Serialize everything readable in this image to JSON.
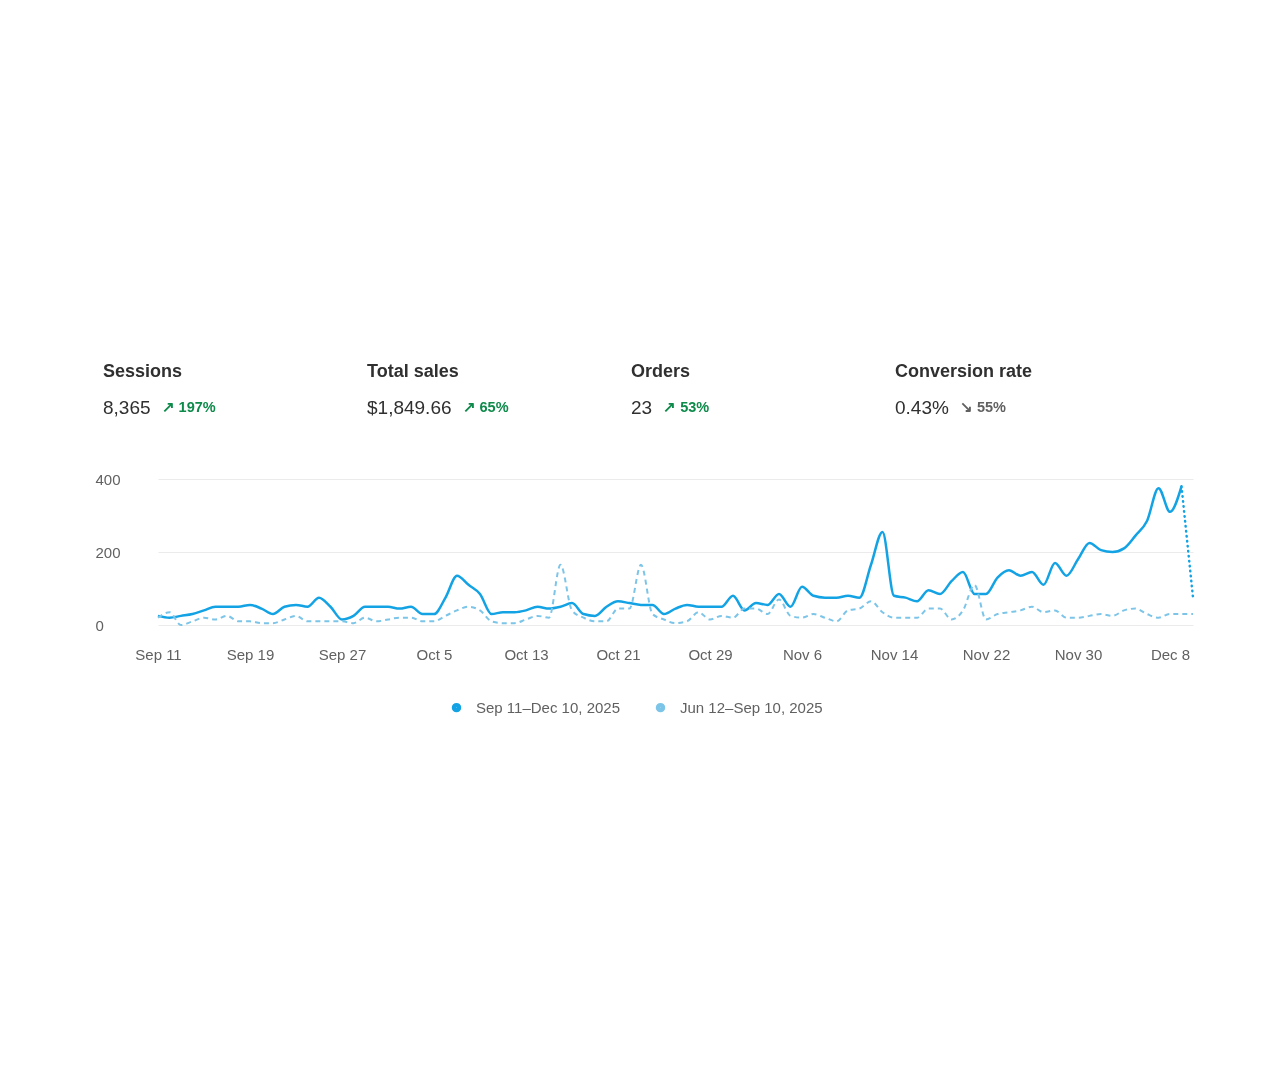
{
  "chart_data": [
    {
      "type": "other",
      "categories": [
        "Sessions",
        "Total sales",
        "Orders",
        "Conversion rate"
      ],
      "value_labels": [
        "8,365",
        "$1,849.66",
        "23",
        "0.43%"
      ],
      "annotations": [
        "↗ 197%",
        "↗ 65%",
        "↗ 53%",
        "↘ 55%"
      ],
      "colors": [
        "#0e8a4b",
        "#0e8a4b",
        "#0e8a4b",
        "#616161"
      ]
    },
    {
      "type": "line",
      "x": [
        "2025-09-11",
        "2025-09-12",
        "2025-09-13",
        "2025-09-14",
        "2025-09-15",
        "2025-09-16",
        "2025-09-17",
        "2025-09-18",
        "2025-09-19",
        "2025-09-20",
        "2025-09-21",
        "2025-09-22",
        "2025-09-23",
        "2025-09-24",
        "2025-09-25",
        "2025-09-26",
        "2025-09-27",
        "2025-09-28",
        "2025-09-29",
        "2025-09-30",
        "2025-10-01",
        "2025-10-02",
        "2025-10-03",
        "2025-10-04",
        "2025-10-05",
        "2025-10-06",
        "2025-10-07",
        "2025-10-08",
        "2025-10-09",
        "2025-10-10",
        "2025-10-11",
        "2025-10-12",
        "2025-10-13",
        "2025-10-14",
        "2025-10-15",
        "2025-10-16",
        "2025-10-17",
        "2025-10-18",
        "2025-10-19",
        "2025-10-20",
        "2025-10-21",
        "2025-10-22",
        "2025-10-23",
        "2025-10-24",
        "2025-10-25",
        "2025-10-26",
        "2025-10-27",
        "2025-10-28",
        "2025-10-29",
        "2025-10-30",
        "2025-10-31",
        "2025-11-01",
        "2025-11-02",
        "2025-11-03",
        "2025-11-04",
        "2025-11-05",
        "2025-11-06",
        "2025-11-07",
        "2025-11-08",
        "2025-11-09",
        "2025-11-10",
        "2025-11-11",
        "2025-11-12",
        "2025-11-13",
        "2025-11-14",
        "2025-11-15",
        "2025-11-16",
        "2025-11-17",
        "2025-11-18",
        "2025-11-19",
        "2025-11-20",
        "2025-11-21",
        "2025-11-22",
        "2025-11-23",
        "2025-11-24",
        "2025-11-25",
        "2025-11-26",
        "2025-11-27",
        "2025-11-28",
        "2025-11-29",
        "2025-11-30",
        "2025-12-01",
        "2025-12-02",
        "2025-12-03",
        "2025-12-04",
        "2025-12-05",
        "2025-12-06",
        "2025-12-07",
        "2025-12-08",
        "2025-12-09",
        "2025-12-10"
      ],
      "series": [
        {
          "name": "Sep 11–Dec 10, 2025",
          "color": "#13a3e4",
          "line_style": "solid",
          "values": [
            25,
            20,
            25,
            30,
            40,
            50,
            50,
            50,
            55,
            45,
            30,
            50,
            55,
            50,
            75,
            50,
            15,
            25,
            50,
            50,
            50,
            45,
            50,
            30,
            30,
            75,
            135,
            110,
            85,
            30,
            35,
            35,
            40,
            50,
            45,
            50,
            60,
            30,
            25,
            50,
            65,
            60,
            55,
            55,
            30,
            45,
            55,
            50,
            50,
            50,
            80,
            40,
            60,
            55,
            85,
            50,
            105,
            80,
            75,
            75,
            80,
            75,
            165,
            255,
            80,
            75,
            65,
            95,
            85,
            120,
            145,
            85,
            85,
            130,
            150,
            135,
            145,
            110,
            170,
            135,
            180,
            225,
            205,
            200,
            210,
            245,
            285,
            375,
            310,
            380,
            null
          ]
        },
        {
          "name": "Jun 12–Sep 10, 2025",
          "color": "#7cc5e8",
          "line_style": "dashed",
          "values": [
            20,
            35,
            0,
            10,
            20,
            15,
            25,
            10,
            10,
            5,
            5,
            15,
            25,
            10,
            10,
            10,
            10,
            5,
            20,
            10,
            15,
            20,
            20,
            10,
            10,
            25,
            40,
            50,
            40,
            10,
            5,
            5,
            15,
            25,
            20,
            165,
            40,
            20,
            10,
            10,
            45,
            45,
            165,
            30,
            15,
            5,
            10,
            35,
            15,
            25,
            20,
            45,
            45,
            30,
            70,
            25,
            20,
            30,
            20,
            10,
            40,
            45,
            65,
            35,
            20,
            20,
            20,
            45,
            45,
            15,
            40,
            110,
            15,
            30,
            35,
            40,
            50,
            35,
            40,
            20,
            20,
            25,
            30,
            25,
            40,
            45,
            30,
            20,
            30,
            30,
            30
          ]
        },
        {
          "color": "#13a3e4",
          "line_style": "dotted",
          "x": [
            "2025-12-09",
            "2025-12-10"
          ],
          "values": [
            380,
            75
          ]
        }
      ],
      "xlim": [
        "2025-09-11",
        "2025-12-10"
      ],
      "xticks": [
        {
          "value": "2025-09-11",
          "label": "Sep 11"
        },
        {
          "value": "2025-09-19",
          "label": "Sep 19"
        },
        {
          "value": "2025-09-27",
          "label": "Sep 27"
        },
        {
          "value": "2025-10-05",
          "label": "Oct 5"
        },
        {
          "value": "2025-10-13",
          "label": "Oct 13"
        },
        {
          "value": "2025-10-21",
          "label": "Oct 21"
        },
        {
          "value": "2025-10-29",
          "label": "Oct 29"
        },
        {
          "value": "2025-11-06",
          "label": "Nov 6"
        },
        {
          "value": "2025-11-14",
          "label": "Nov 14"
        },
        {
          "value": "2025-11-22",
          "label": "Nov 22"
        },
        {
          "value": "2025-11-30",
          "label": "Nov 30"
        },
        {
          "value": "2025-12-08",
          "label": "Dec 8"
        }
      ],
      "ylim": [
        0,
        400
      ],
      "yticks": [
        0,
        200,
        400
      ],
      "grid": "y",
      "legend": "bottom"
    }
  ]
}
